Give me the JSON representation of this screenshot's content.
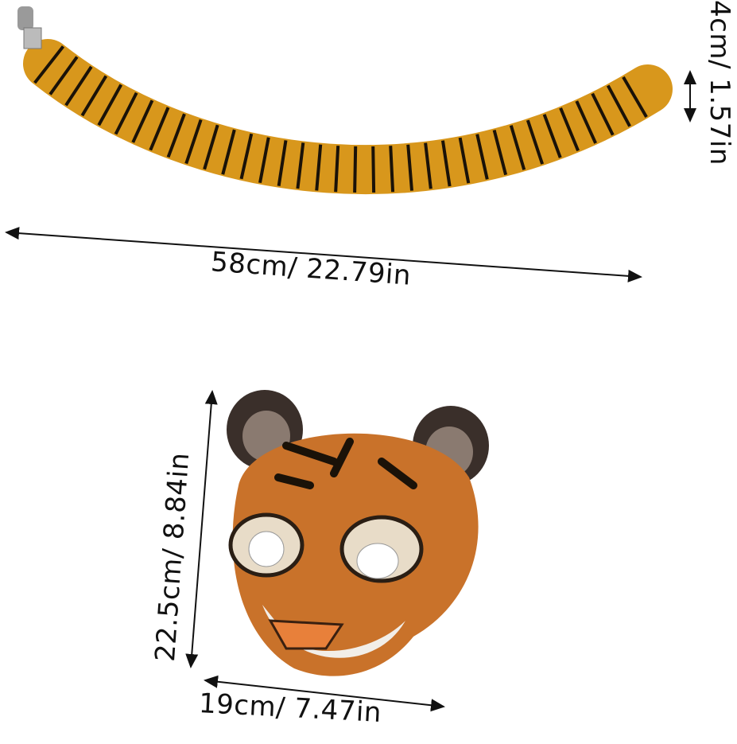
{
  "product": {
    "tail": {
      "length_label": "58cm/ 22.79in",
      "width_label": "4cm/ 1.57in"
    },
    "mask": {
      "height_label": "22.5cm/ 8.84in",
      "width_label": "19cm/ 7.47in"
    }
  },
  "colors": {
    "fur_orange": "#d8971c",
    "stripe": "#1a1208",
    "mask_orange": "#c9722a",
    "ear_dark": "#3a2f2a"
  }
}
